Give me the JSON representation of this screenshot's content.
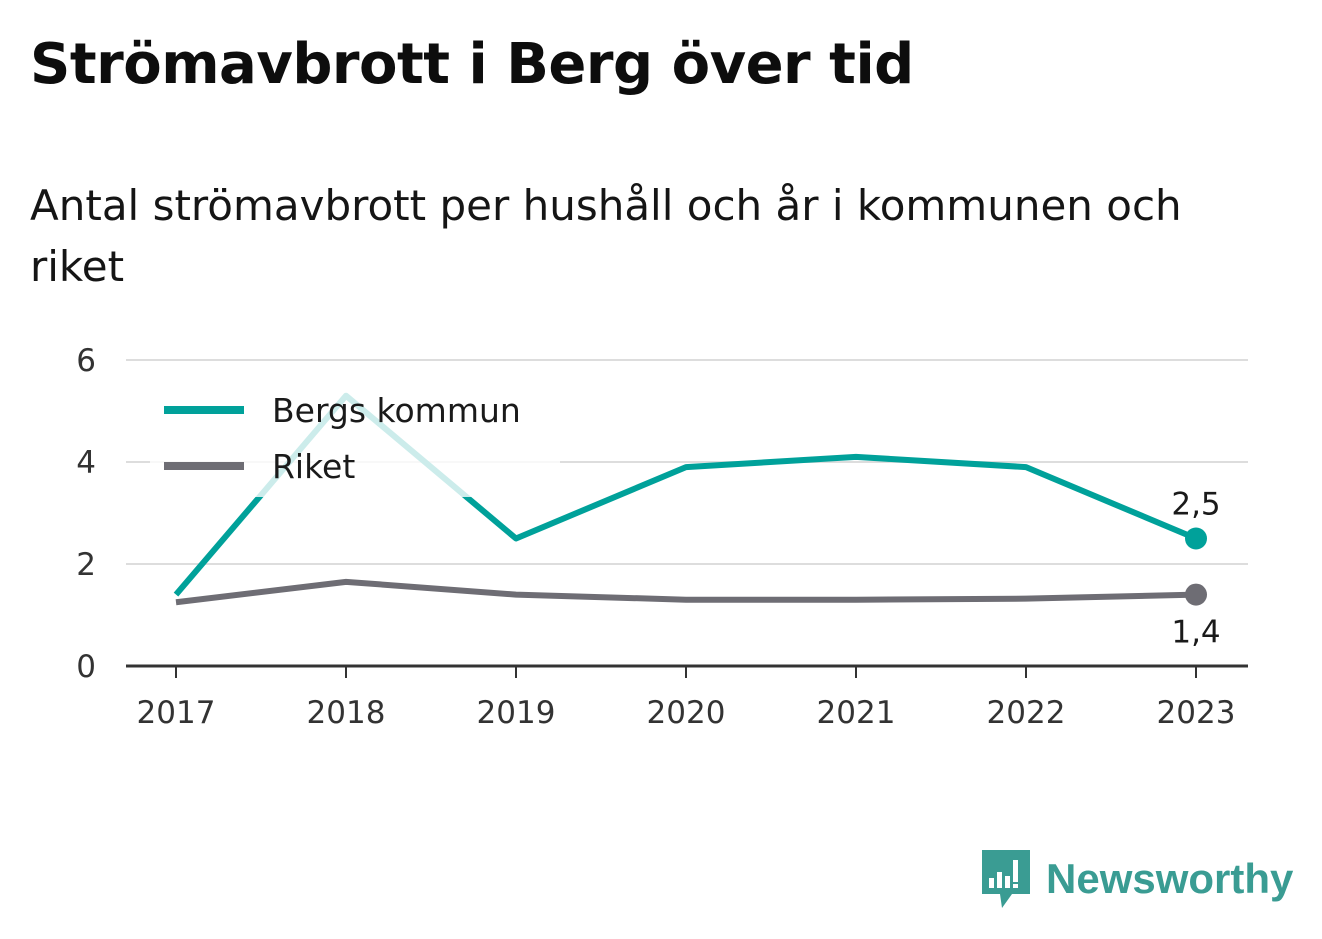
{
  "chart_data": {
    "type": "line",
    "title": "Strömavbrott i Berg över tid",
    "subtitle": "Antal strömavbrott per hushåll och år i kommunen och riket",
    "xlabel": "",
    "ylabel": "",
    "categories": [
      "2017",
      "2018",
      "2019",
      "2020",
      "2021",
      "2022",
      "2023"
    ],
    "ylim": [
      0,
      6
    ],
    "yticks": [
      0,
      2,
      4,
      6
    ],
    "grid": true,
    "legend_position": "top-left",
    "series": [
      {
        "name": "Bergs kommun",
        "color": "#00a19a",
        "values": [
          1.4,
          5.3,
          2.5,
          3.9,
          4.1,
          3.9,
          2.5
        ],
        "end_label": "2,5",
        "end_label_position": "above"
      },
      {
        "name": "Riket",
        "color": "#6e6d74",
        "values": [
          1.25,
          1.65,
          1.4,
          1.3,
          1.3,
          1.32,
          1.4
        ],
        "end_label": "1,4",
        "end_label_position": "below"
      }
    ]
  },
  "brand": {
    "name": "Newsworthy",
    "color": "#3a9c93",
    "icon": "newsworthy-logo-icon"
  }
}
